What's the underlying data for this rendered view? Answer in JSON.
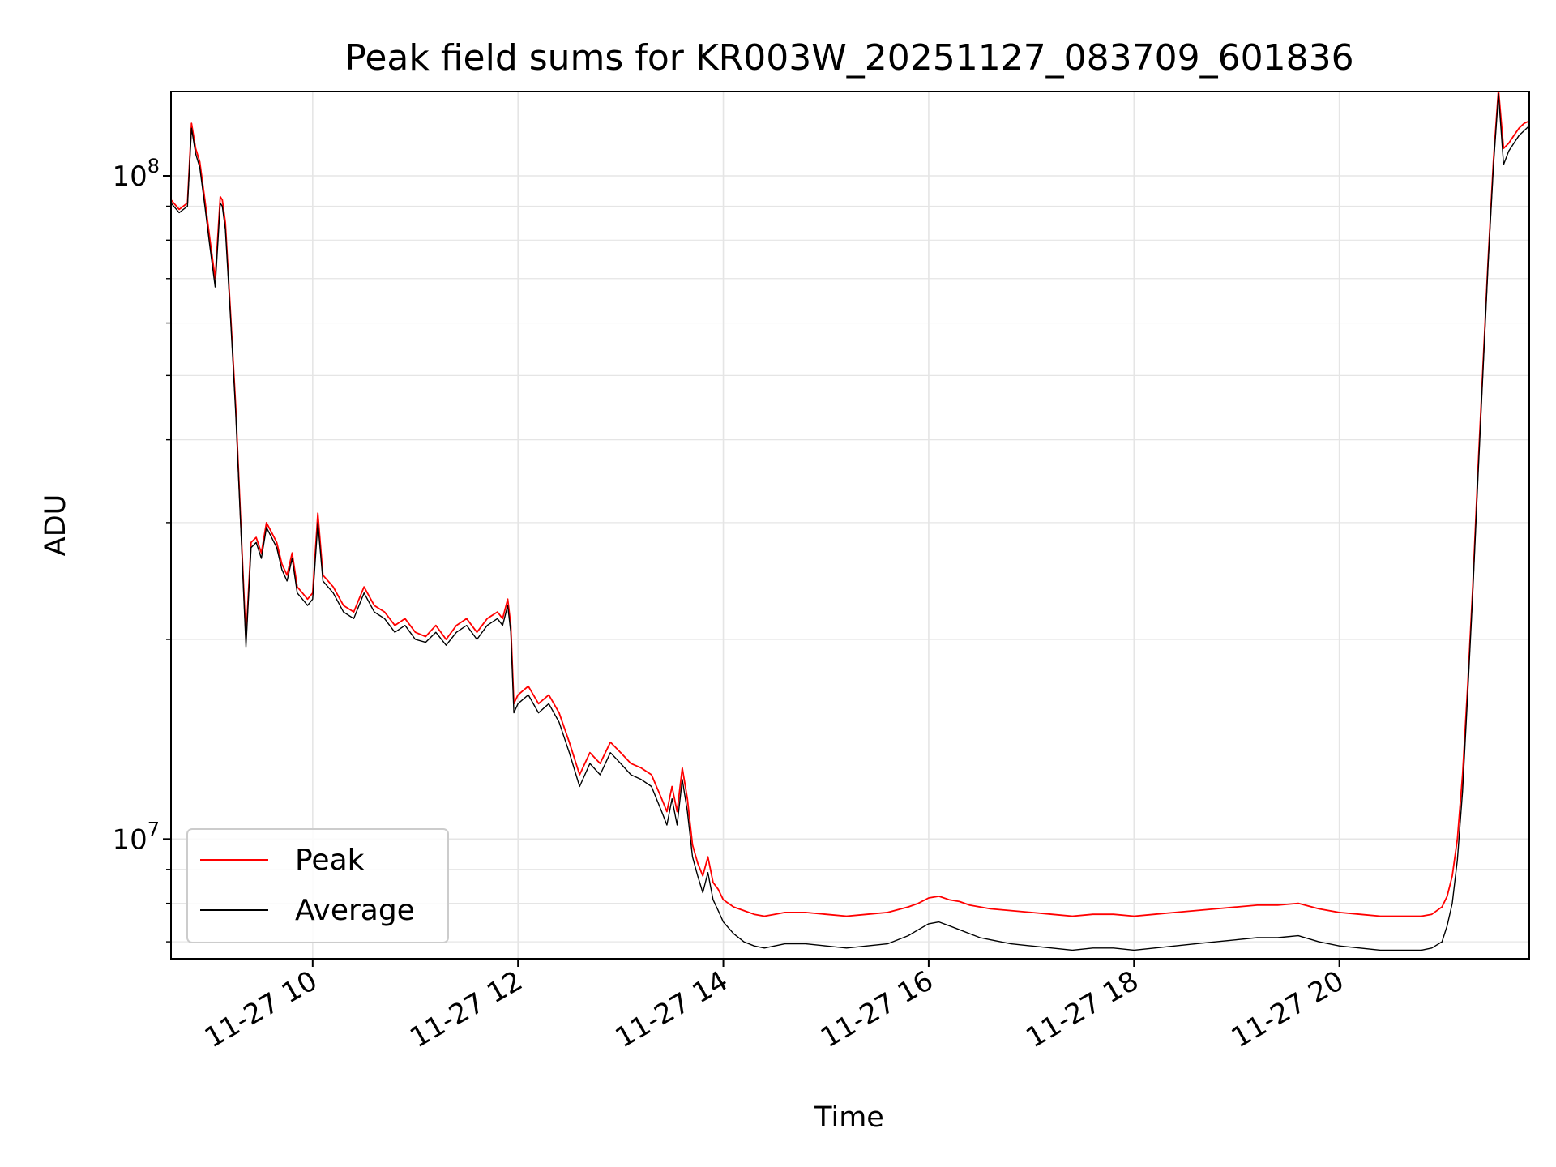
{
  "chart_data": {
    "type": "line",
    "title": "Peak field sums for KR003W_20251127_083709_601836",
    "xlabel": "Time",
    "ylabel": "ADU",
    "x_range": [
      8.62,
      21.85
    ],
    "y_scale": "log",
    "ylim": [
      6600000.0,
      134000000.0
    ],
    "grid": true,
    "grid_minor": true,
    "legend_position": "lower-left",
    "x_ticks": [
      {
        "value": 10,
        "label": "11-27 10"
      },
      {
        "value": 12,
        "label": "11-27 12"
      },
      {
        "value": 14,
        "label": "11-27 14"
      },
      {
        "value": 16,
        "label": "11-27 16"
      },
      {
        "value": 18,
        "label": "11-27 18"
      },
      {
        "value": 20,
        "label": "11-27 20"
      }
    ],
    "y_ticks": [
      {
        "value": 10000000,
        "base": "10",
        "exp": "7"
      },
      {
        "value": 100000000,
        "base": "10",
        "exp": "8"
      }
    ],
    "series": [
      {
        "name": "Peak",
        "color": "#ff0000",
        "x": [
          8.62,
          8.7,
          8.78,
          8.82,
          8.86,
          8.9,
          8.95,
          9.0,
          9.05,
          9.1,
          9.12,
          9.15,
          9.2,
          9.25,
          9.3,
          9.35,
          9.4,
          9.45,
          9.5,
          9.55,
          9.6,
          9.65,
          9.7,
          9.75,
          9.8,
          9.85,
          9.9,
          9.95,
          10.0,
          10.05,
          10.1,
          10.2,
          10.3,
          10.4,
          10.5,
          10.6,
          10.7,
          10.8,
          10.9,
          11.0,
          11.1,
          11.2,
          11.3,
          11.4,
          11.5,
          11.6,
          11.7,
          11.8,
          11.85,
          11.9,
          11.93,
          11.96,
          12.0,
          12.1,
          12.2,
          12.3,
          12.4,
          12.5,
          12.6,
          12.7,
          12.8,
          12.9,
          13.0,
          13.1,
          13.2,
          13.3,
          13.4,
          13.45,
          13.5,
          13.55,
          13.6,
          13.65,
          13.7,
          13.75,
          13.8,
          13.85,
          13.9,
          13.95,
          14.0,
          14.1,
          14.2,
          14.3,
          14.4,
          14.5,
          14.6,
          14.8,
          15.0,
          15.2,
          15.4,
          15.6,
          15.8,
          15.9,
          16.0,
          16.1,
          16.2,
          16.3,
          16.4,
          16.5,
          16.6,
          16.8,
          17.0,
          17.2,
          17.4,
          17.6,
          17.8,
          18.0,
          18.2,
          18.4,
          18.6,
          18.8,
          19.0,
          19.2,
          19.4,
          19.6,
          19.8,
          20.0,
          20.2,
          20.4,
          20.6,
          20.8,
          20.9,
          21.0,
          21.05,
          21.1,
          21.15,
          21.2,
          21.25,
          21.3,
          21.35,
          21.4,
          21.45,
          21.5,
          21.55,
          21.6,
          21.65,
          21.7,
          21.75,
          21.8,
          21.85
        ],
        "y": [
          92000000,
          89000000,
          91000000,
          120000000,
          110000000,
          105000000,
          92000000,
          80000000,
          70000000,
          93000000,
          92000000,
          85000000,
          62000000,
          45000000,
          30000000,
          20000000,
          28000000,
          28500000,
          27000000,
          30000000,
          29000000,
          28000000,
          26000000,
          25000000,
          27000000,
          24000000,
          23500000,
          23000000,
          23500000,
          31000000,
          25000000,
          24000000,
          22500000,
          22000000,
          24000000,
          22500000,
          22000000,
          21000000,
          21500000,
          20500000,
          20200000,
          21000000,
          20000000,
          21000000,
          21500000,
          20500000,
          21500000,
          22000000,
          21500000,
          23000000,
          21000000,
          16000000,
          16500000,
          17000000,
          16000000,
          16500000,
          15500000,
          14000000,
          12500000,
          13500000,
          13000000,
          14000000,
          13500000,
          13000000,
          12800000,
          12500000,
          11500000,
          11000000,
          12000000,
          11000000,
          12800000,
          11500000,
          9800000,
          9200000,
          8800000,
          9400000,
          8600000,
          8400000,
          8100000,
          7900000,
          7800000,
          7700000,
          7650000,
          7700000,
          7750000,
          7750000,
          7700000,
          7650000,
          7700000,
          7750000,
          7900000,
          8000000,
          8150000,
          8200000,
          8100000,
          8050000,
          7950000,
          7900000,
          7850000,
          7800000,
          7750000,
          7700000,
          7650000,
          7700000,
          7700000,
          7650000,
          7700000,
          7750000,
          7800000,
          7850000,
          7900000,
          7950000,
          7950000,
          8000000,
          7850000,
          7750000,
          7700000,
          7650000,
          7650000,
          7650000,
          7700000,
          7900000,
          8200000,
          8800000,
          10000000,
          12500000,
          17000000,
          24000000,
          36000000,
          52000000,
          75000000,
          105000000,
          135000000,
          110000000,
          112000000,
          115000000,
          118000000,
          120000000,
          121000000
        ]
      },
      {
        "name": "Average",
        "color": "#000000",
        "x": [
          8.62,
          8.7,
          8.78,
          8.82,
          8.86,
          8.9,
          8.95,
          9.0,
          9.05,
          9.1,
          9.12,
          9.15,
          9.2,
          9.25,
          9.3,
          9.35,
          9.4,
          9.45,
          9.5,
          9.55,
          9.6,
          9.65,
          9.7,
          9.75,
          9.8,
          9.85,
          9.9,
          9.95,
          10.0,
          10.05,
          10.1,
          10.2,
          10.3,
          10.4,
          10.5,
          10.6,
          10.7,
          10.8,
          10.9,
          11.0,
          11.1,
          11.2,
          11.3,
          11.4,
          11.5,
          11.6,
          11.7,
          11.8,
          11.85,
          11.9,
          11.93,
          11.96,
          12.0,
          12.1,
          12.2,
          12.3,
          12.4,
          12.5,
          12.6,
          12.7,
          12.8,
          12.9,
          13.0,
          13.1,
          13.2,
          13.3,
          13.4,
          13.45,
          13.5,
          13.55,
          13.6,
          13.65,
          13.7,
          13.75,
          13.8,
          13.85,
          13.9,
          13.95,
          14.0,
          14.1,
          14.2,
          14.3,
          14.4,
          14.5,
          14.6,
          14.8,
          15.0,
          15.2,
          15.4,
          15.6,
          15.8,
          15.9,
          16.0,
          16.1,
          16.2,
          16.3,
          16.4,
          16.5,
          16.6,
          16.8,
          17.0,
          17.2,
          17.4,
          17.6,
          17.8,
          18.0,
          18.2,
          18.4,
          18.6,
          18.8,
          19.0,
          19.2,
          19.4,
          19.6,
          19.8,
          20.0,
          20.2,
          20.4,
          20.6,
          20.8,
          20.9,
          21.0,
          21.05,
          21.1,
          21.15,
          21.2,
          21.25,
          21.3,
          21.35,
          21.4,
          21.45,
          21.5,
          21.55,
          21.6,
          21.65,
          21.7,
          21.75,
          21.8,
          21.85
        ],
        "y": [
          91000000,
          88000000,
          90000000,
          118000000,
          108000000,
          103000000,
          90000000,
          78000000,
          68000000,
          91000000,
          90000000,
          83000000,
          61000000,
          44000000,
          29500000,
          19500000,
          27500000,
          28000000,
          26500000,
          29500000,
          28500000,
          27500000,
          25500000,
          24500000,
          26500000,
          23500000,
          23000000,
          22500000,
          23000000,
          30000000,
          24500000,
          23500000,
          22000000,
          21500000,
          23500000,
          22000000,
          21500000,
          20500000,
          21000000,
          20000000,
          19800000,
          20500000,
          19600000,
          20500000,
          21000000,
          20000000,
          21000000,
          21500000,
          21000000,
          22500000,
          20500000,
          15500000,
          16000000,
          16500000,
          15500000,
          16000000,
          15000000,
          13500000,
          12000000,
          13000000,
          12500000,
          13500000,
          13000000,
          12500000,
          12300000,
          12000000,
          11000000,
          10500000,
          11500000,
          10500000,
          12300000,
          11000000,
          9400000,
          8800000,
          8300000,
          8900000,
          8100000,
          7800000,
          7500000,
          7200000,
          7000000,
          6900000,
          6850000,
          6900000,
          6950000,
          6950000,
          6900000,
          6850000,
          6900000,
          6950000,
          7150000,
          7300000,
          7450000,
          7500000,
          7400000,
          7300000,
          7200000,
          7100000,
          7050000,
          6950000,
          6900000,
          6850000,
          6800000,
          6850000,
          6850000,
          6800000,
          6850000,
          6900000,
          6950000,
          7000000,
          7050000,
          7100000,
          7100000,
          7150000,
          7000000,
          6900000,
          6850000,
          6800000,
          6800000,
          6800000,
          6850000,
          7000000,
          7400000,
          8000000,
          9300000,
          11800000,
          16500000,
          23500000,
          35000000,
          51000000,
          74000000,
          103000000,
          133000000,
          104000000,
          109000000,
          112000000,
          115000000,
          117000000,
          119000000
        ]
      }
    ]
  }
}
